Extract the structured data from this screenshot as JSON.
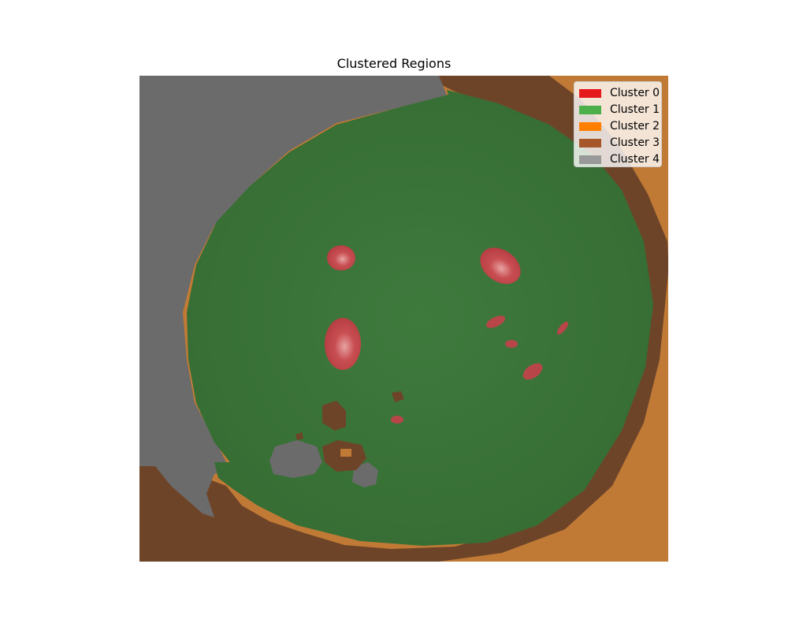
{
  "title": "Clustered Regions",
  "legend": [
    {
      "label": "Cluster 0",
      "color": "#e41a1c"
    },
    {
      "label": "Cluster 1",
      "color": "#4daf4a"
    },
    {
      "label": "Cluster 2",
      "color": "#ff7f00"
    },
    {
      "label": "Cluster 3",
      "color": "#a65628"
    },
    {
      "label": "Cluster 4",
      "color": "#999999"
    }
  ],
  "image_region_colors": {
    "cluster_0_overlay": "#c14a4d",
    "cluster_1_overlay": "#3f7a3d",
    "cluster_2_overlay": "#c07a35",
    "cluster_3_overlay": "#6e4428",
    "cluster_4_overlay": "#6b6b6b"
  }
}
